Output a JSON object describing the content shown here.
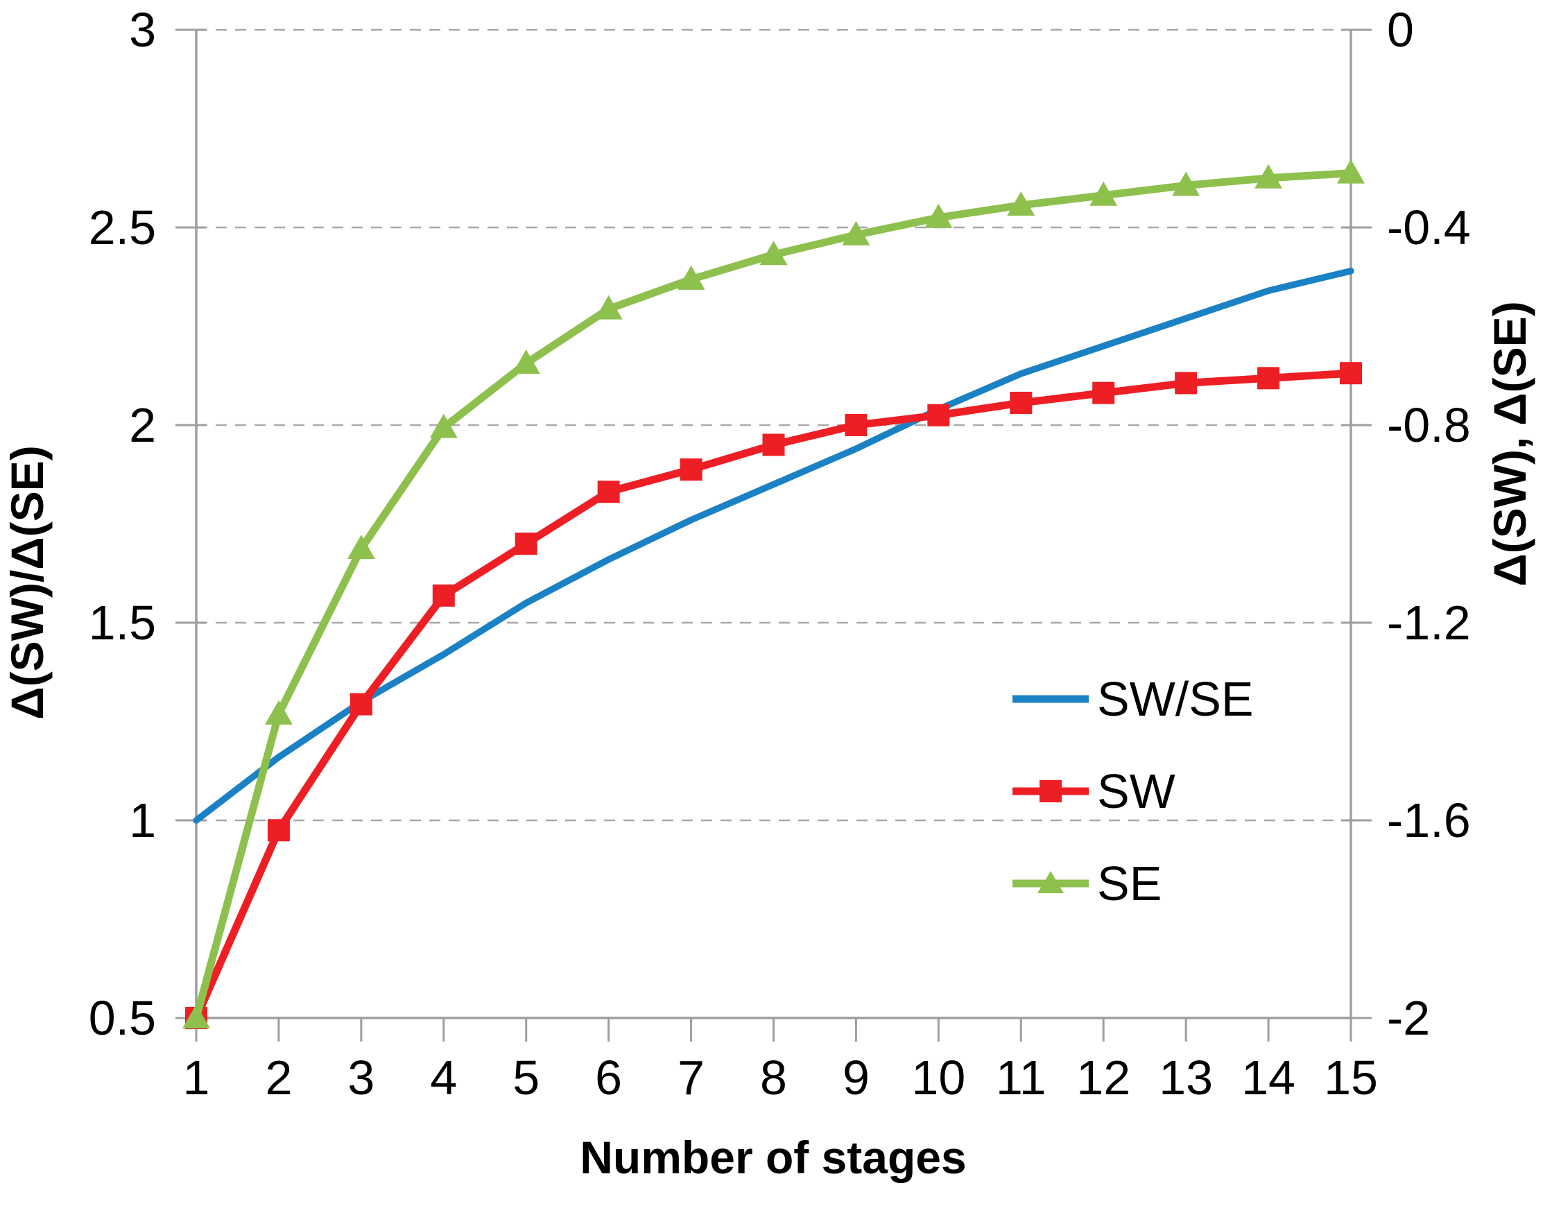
{
  "chart_data": {
    "type": "line",
    "title": "",
    "xlabel": "Number of stages",
    "ylabel_left": "Δ(SW)/Δ(SE)",
    "ylabel_right": "Δ(SW), Δ(SE)",
    "categories": [
      1,
      2,
      3,
      4,
      5,
      6,
      7,
      8,
      9,
      10,
      11,
      12,
      13,
      14,
      15
    ],
    "x_tick_labels": [
      "1",
      "2",
      "3",
      "4",
      "5",
      "6",
      "7",
      "8",
      "9",
      "10",
      "11",
      "12",
      "13",
      "14",
      "15"
    ],
    "left_axis": {
      "min": 0.5,
      "max": 3,
      "tick_values": [
        3,
        2.5,
        2,
        1.5,
        1,
        0.5
      ],
      "tick_labels": [
        "3",
        "2.5",
        "2",
        "1.5",
        "1",
        "0.5"
      ]
    },
    "right_axis": {
      "min": -2,
      "max": 0,
      "tick_values": [
        0,
        -0.4,
        -0.8,
        -1.2,
        -1.6,
        -2
      ],
      "tick_labels": [
        "0",
        "-0.4",
        "-0.8",
        "-1.2",
        "-1.6",
        "-2"
      ]
    },
    "grid": "horizontal-dashed",
    "legend_position": "middle-right",
    "series": [
      {
        "name": "SW/SE",
        "axis": "left",
        "color": "#1B81C5",
        "marker": "none",
        "values": [
          1.0,
          1.16,
          1.3,
          1.42,
          1.55,
          1.66,
          1.76,
          1.85,
          1.94,
          2.04,
          2.13,
          2.2,
          2.27,
          2.34,
          2.39
        ]
      },
      {
        "name": "SW",
        "axis": "right",
        "color": "#ED1F24",
        "marker": "square",
        "values": [
          -2.0,
          -1.62,
          -1.365,
          -1.145,
          -1.04,
          -0.935,
          -0.89,
          -0.84,
          -0.8,
          -0.78,
          -0.755,
          -0.735,
          -0.715,
          -0.705,
          -0.695
        ]
      },
      {
        "name": "SE",
        "axis": "right",
        "color": "#8EC04E",
        "marker": "triangle",
        "values": [
          -2.0,
          -1.385,
          -1.05,
          -0.805,
          -0.675,
          -0.565,
          -0.505,
          -0.455,
          -0.415,
          -0.38,
          -0.355,
          -0.335,
          -0.315,
          -0.3,
          -0.29
        ]
      }
    ],
    "style": {
      "grid_color": "#A8A8A8",
      "axis_color": "#9E9E9E",
      "text_color": "#000000"
    }
  }
}
